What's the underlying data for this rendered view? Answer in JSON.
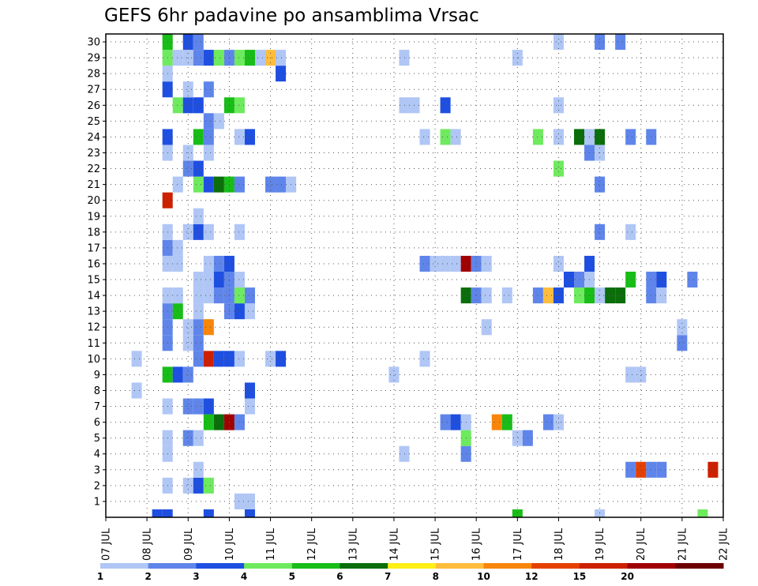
{
  "chart_data": {
    "type": "heatmap",
    "title": "GEFS 6hr padavine po ansamblima Vrsac",
    "xlabel": "",
    "ylabel": "",
    "x_tick_labels": [
      "07 JUL",
      "08 JUL",
      "09 JUL",
      "10 JUL",
      "11 JUL",
      "12 JUL",
      "13 JUL",
      "14 JUL",
      "15 JUL",
      "16 JUL",
      "17 JUL",
      "18 JUL",
      "19 JUL",
      "20 JUL",
      "21 JUL",
      "22 JUL"
    ],
    "y_tick_labels": [
      "1",
      "2",
      "3",
      "4",
      "5",
      "6",
      "7",
      "8",
      "9",
      "10",
      "11",
      "12",
      "13",
      "14",
      "15",
      "16",
      "17",
      "18",
      "19",
      "20",
      "21",
      "22",
      "23",
      "24",
      "25",
      "26",
      "27",
      "28",
      "29",
      "30"
    ],
    "x_range_days": [
      7,
      22
    ],
    "y_range_members": [
      0,
      30
    ],
    "grid": true,
    "legend_position": "bottom",
    "color_levels": [
      {
        "label": "1",
        "color": "#b0c6f5"
      },
      {
        "label": "2",
        "color": "#5f85ea"
      },
      {
        "label": "3",
        "color": "#1f4fe0"
      },
      {
        "label": "4",
        "color": "#6eea5e"
      },
      {
        "label": "5",
        "color": "#18bd18"
      },
      {
        "label": "6",
        "color": "#0b6e0b"
      },
      {
        "label": "7",
        "color": "#ffef14"
      },
      {
        "label": "8",
        "color": "#ffbd3d"
      },
      {
        "label": "10",
        "color": "#f7860a"
      },
      {
        "label": "12",
        "color": "#e64000"
      },
      {
        "label": "15",
        "color": "#cc2000"
      },
      {
        "label": "20",
        "color": "#a00000"
      },
      {
        "label": "",
        "color": "#6c0000"
      }
    ],
    "cells_note": "each cell: [day, member, color_level_index]; day in days of July, 6-hour steps; member 0 = control row",
    "cells": [
      [
        8.25,
        0,
        2
      ],
      [
        8.5,
        0,
        2
      ],
      [
        9.5,
        0,
        2
      ],
      [
        10.5,
        0,
        2
      ],
      [
        17,
        0,
        4
      ],
      [
        19,
        0,
        0
      ],
      [
        21.5,
        0,
        3
      ],
      [
        10.25,
        1,
        0
      ],
      [
        10.5,
        1,
        0
      ],
      [
        8.5,
        2,
        0
      ],
      [
        9,
        2,
        0
      ],
      [
        9.25,
        2,
        2
      ],
      [
        9.5,
        2,
        3
      ],
      [
        9.25,
        3,
        0
      ],
      [
        19.75,
        3,
        1
      ],
      [
        20,
        3,
        9
      ],
      [
        20.25,
        3,
        1
      ],
      [
        20.5,
        3,
        1
      ],
      [
        21.75,
        3,
        10
      ],
      [
        8.5,
        4,
        0
      ],
      [
        14.25,
        4,
        0
      ],
      [
        15.75,
        4,
        1
      ],
      [
        8.5,
        5,
        0
      ],
      [
        9,
        5,
        1
      ],
      [
        9.25,
        5,
        0
      ],
      [
        15.75,
        5,
        3
      ],
      [
        17,
        5,
        0
      ],
      [
        17.25,
        5,
        1
      ],
      [
        9.5,
        6,
        4
      ],
      [
        9.75,
        6,
        5
      ],
      [
        10,
        6,
        11
      ],
      [
        10.25,
        6,
        1
      ],
      [
        15.25,
        6,
        1
      ],
      [
        15.5,
        6,
        2
      ],
      [
        15.75,
        6,
        0
      ],
      [
        16.5,
        6,
        8
      ],
      [
        16.75,
        6,
        4
      ],
      [
        17.75,
        6,
        1
      ],
      [
        18,
        6,
        0
      ],
      [
        8.5,
        7,
        0
      ],
      [
        9,
        7,
        1
      ],
      [
        9.25,
        7,
        1
      ],
      [
        9.5,
        7,
        2
      ],
      [
        10.5,
        7,
        0
      ],
      [
        7.75,
        8,
        0
      ],
      [
        10.5,
        8,
        2
      ],
      [
        8.5,
        9,
        4
      ],
      [
        8.75,
        9,
        2
      ],
      [
        9,
        9,
        1
      ],
      [
        14,
        9,
        0
      ],
      [
        19.75,
        9,
        0
      ],
      [
        20,
        9,
        0
      ],
      [
        7.75,
        10,
        0
      ],
      [
        9.25,
        10,
        1
      ],
      [
        9.5,
        10,
        10
      ],
      [
        9.75,
        10,
        2
      ],
      [
        10,
        10,
        2
      ],
      [
        10.25,
        10,
        0
      ],
      [
        11,
        10,
        0
      ],
      [
        11.25,
        10,
        2
      ],
      [
        14.75,
        10,
        0
      ],
      [
        8.5,
        11,
        1
      ],
      [
        9,
        11,
        0
      ],
      [
        9.25,
        11,
        1
      ],
      [
        21,
        11,
        1
      ],
      [
        8.5,
        12,
        1
      ],
      [
        9,
        12,
        0
      ],
      [
        9.25,
        12,
        1
      ],
      [
        9.5,
        12,
        8
      ],
      [
        16.25,
        12,
        0
      ],
      [
        21,
        12,
        0
      ],
      [
        8.5,
        13,
        1
      ],
      [
        8.75,
        13,
        4
      ],
      [
        9.25,
        13,
        0
      ],
      [
        10,
        13,
        1
      ],
      [
        10.25,
        13,
        2
      ],
      [
        10.5,
        13,
        0
      ],
      [
        8.5,
        14,
        0
      ],
      [
        8.75,
        14,
        0
      ],
      [
        9.25,
        14,
        0
      ],
      [
        9.5,
        14,
        0
      ],
      [
        9.75,
        14,
        1
      ],
      [
        10,
        14,
        1
      ],
      [
        10.25,
        14,
        3
      ],
      [
        10.5,
        14,
        1
      ],
      [
        15.75,
        14,
        5
      ],
      [
        16,
        14,
        1
      ],
      [
        16.25,
        14,
        0
      ],
      [
        16.75,
        14,
        0
      ],
      [
        17.5,
        14,
        1
      ],
      [
        17.75,
        14,
        7
      ],
      [
        18,
        14,
        2
      ],
      [
        18.5,
        14,
        3
      ],
      [
        18.75,
        14,
        4
      ],
      [
        19,
        14,
        0
      ],
      [
        19.25,
        14,
        5
      ],
      [
        19.5,
        14,
        5
      ],
      [
        20.25,
        14,
        1
      ],
      [
        20.5,
        14,
        0
      ],
      [
        9.25,
        15,
        0
      ],
      [
        9.5,
        15,
        0
      ],
      [
        9.75,
        15,
        2
      ],
      [
        10,
        15,
        1
      ],
      [
        10.25,
        15,
        0
      ],
      [
        18.25,
        15,
        2
      ],
      [
        18.5,
        15,
        1
      ],
      [
        18.75,
        15,
        0
      ],
      [
        19.75,
        15,
        4
      ],
      [
        20.25,
        15,
        1
      ],
      [
        20.5,
        15,
        2
      ],
      [
        21.25,
        15,
        1
      ],
      [
        8.5,
        16,
        0
      ],
      [
        8.75,
        16,
        0
      ],
      [
        9.5,
        16,
        0
      ],
      [
        9.75,
        16,
        1
      ],
      [
        10,
        16,
        2
      ],
      [
        14.75,
        16,
        1
      ],
      [
        15,
        16,
        0
      ],
      [
        15.25,
        16,
        0
      ],
      [
        15.5,
        16,
        0
      ],
      [
        15.75,
        16,
        11
      ],
      [
        16,
        16,
        1
      ],
      [
        16.25,
        16,
        0
      ],
      [
        18,
        16,
        0
      ],
      [
        18.75,
        16,
        2
      ],
      [
        8.5,
        17,
        1
      ],
      [
        8.75,
        17,
        0
      ],
      [
        8.5,
        18,
        0
      ],
      [
        9,
        18,
        0
      ],
      [
        9.25,
        18,
        2
      ],
      [
        9.5,
        18,
        0
      ],
      [
        10.25,
        18,
        0
      ],
      [
        19,
        18,
        1
      ],
      [
        19.75,
        18,
        0
      ],
      [
        9.25,
        19,
        0
      ],
      [
        8.5,
        20,
        10
      ],
      [
        8.75,
        21,
        0
      ],
      [
        9.25,
        21,
        3
      ],
      [
        9.5,
        21,
        2
      ],
      [
        9.75,
        21,
        5
      ],
      [
        10,
        21,
        4
      ],
      [
        10.25,
        21,
        1
      ],
      [
        11,
        21,
        1
      ],
      [
        11.25,
        21,
        1
      ],
      [
        11.5,
        21,
        0
      ],
      [
        19,
        21,
        1
      ],
      [
        9,
        22,
        1
      ],
      [
        9.25,
        22,
        2
      ],
      [
        18,
        22,
        3
      ],
      [
        8.5,
        23,
        0
      ],
      [
        9,
        23,
        0
      ],
      [
        9.5,
        23,
        0
      ],
      [
        18.75,
        23,
        1
      ],
      [
        19,
        23,
        0
      ],
      [
        8.5,
        24,
        2
      ],
      [
        9.25,
        24,
        4
      ],
      [
        9.5,
        24,
        1
      ],
      [
        10.25,
        24,
        0
      ],
      [
        10.5,
        24,
        2
      ],
      [
        14.75,
        24,
        0
      ],
      [
        15.25,
        24,
        3
      ],
      [
        15.5,
        24,
        0
      ],
      [
        17.5,
        24,
        3
      ],
      [
        18,
        24,
        0
      ],
      [
        18.5,
        24,
        5
      ],
      [
        18.75,
        24,
        0
      ],
      [
        19,
        24,
        5
      ],
      [
        19.75,
        24,
        1
      ],
      [
        20.25,
        24,
        1
      ],
      [
        9.5,
        25,
        1
      ],
      [
        9.75,
        25,
        0
      ],
      [
        8.75,
        26,
        3
      ],
      [
        9,
        26,
        2
      ],
      [
        9.25,
        26,
        2
      ],
      [
        10,
        26,
        4
      ],
      [
        10.25,
        26,
        3
      ],
      [
        14.25,
        26,
        0
      ],
      [
        14.5,
        26,
        0
      ],
      [
        15.25,
        26,
        2
      ],
      [
        18,
        26,
        0
      ],
      [
        8.5,
        27,
        2
      ],
      [
        9,
        27,
        0
      ],
      [
        9.5,
        27,
        1
      ],
      [
        8.5,
        28,
        0
      ],
      [
        11.25,
        28,
        2
      ],
      [
        8.5,
        29,
        3
      ],
      [
        8.75,
        29,
        0
      ],
      [
        9,
        29,
        0
      ],
      [
        9.25,
        29,
        1
      ],
      [
        9.5,
        29,
        2
      ],
      [
        9.75,
        29,
        3
      ],
      [
        10,
        29,
        1
      ],
      [
        10.25,
        29,
        3
      ],
      [
        10.5,
        29,
        4
      ],
      [
        10.75,
        29,
        0
      ],
      [
        11,
        29,
        7
      ],
      [
        11.25,
        29,
        0
      ],
      [
        14.25,
        29,
        0
      ],
      [
        17,
        29,
        0
      ],
      [
        8.5,
        30,
        4
      ],
      [
        9,
        30,
        2
      ],
      [
        9.25,
        30,
        1
      ],
      [
        18,
        30,
        0
      ],
      [
        19,
        30,
        1
      ],
      [
        19.5,
        30,
        1
      ]
    ]
  }
}
